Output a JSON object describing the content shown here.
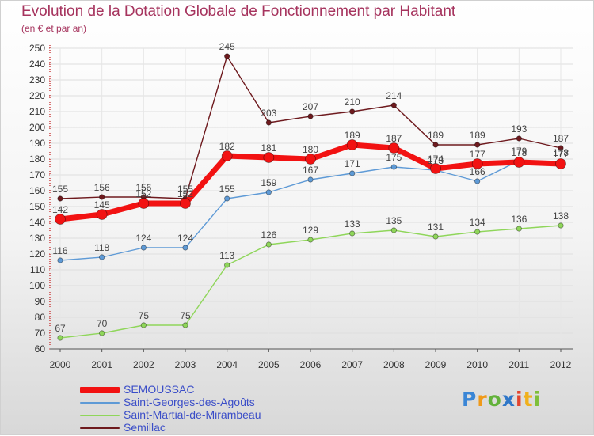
{
  "header": {
    "title": "Evolution de la Dotation Globale de Fonctionnement par Habitant",
    "subtitle": "(en € et par an)"
  },
  "logo": {
    "text": "Proxiti"
  },
  "chart_data": {
    "type": "line",
    "title": "Evolution de la Dotation Globale de Fonctionnement par Habitant",
    "subtitle": "(en € et par an)",
    "xlabel": "",
    "ylabel": "",
    "x": [
      "2000",
      "2001",
      "2002",
      "2003",
      "2004",
      "2005",
      "2006",
      "2007",
      "2008",
      "2009",
      "2010",
      "2011",
      "2012"
    ],
    "ylim": [
      60,
      250
    ],
    "yticks": [
      60,
      70,
      80,
      90,
      100,
      110,
      120,
      130,
      140,
      150,
      160,
      170,
      180,
      190,
      200,
      210,
      220,
      230,
      240,
      250
    ],
    "grid": true,
    "legend_position": "bottom-left",
    "series": [
      {
        "name": "Semillac",
        "color": "#6e1a1e",
        "values": [
          155,
          156,
          156,
          155,
          245,
          203,
          207,
          210,
          214,
          189,
          189,
          193,
          187
        ]
      },
      {
        "name": "Saint-Martial-de-Mirambeau",
        "color": "#8fd65a",
        "values": [
          67,
          70,
          75,
          75,
          113,
          126,
          129,
          133,
          135,
          131,
          134,
          136,
          138
        ]
      },
      {
        "name": "Saint-Georges-des-Agoûts",
        "color": "#5e9ad6",
        "values": [
          116,
          118,
          124,
          124,
          155,
          159,
          167,
          171,
          175,
          173,
          166,
          179,
          178
        ]
      },
      {
        "name": "SEMOUSSAC",
        "color": "#f21212",
        "values": [
          142,
          145,
          152,
          152,
          182,
          181,
          180,
          189,
          187,
          174,
          177,
          178,
          177
        ]
      }
    ],
    "legend_order": [
      "SEMOUSSAC",
      "Saint-Georges-des-Agoûts",
      "Saint-Martial-de-Mirambeau",
      "Semillac"
    ]
  }
}
